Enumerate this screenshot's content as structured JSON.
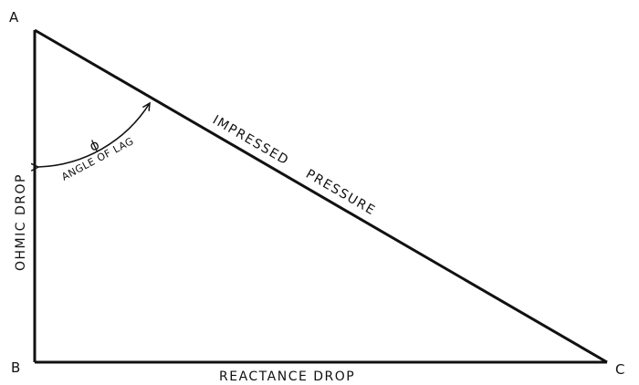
{
  "vertices": {
    "a": "A",
    "b": "B",
    "c": "C"
  },
  "sides": {
    "vertical": "OHMIC DROP",
    "horizontal": "REACTANCE DROP",
    "hypotenuse": "IMPRESSED PRESSURE"
  },
  "angle": {
    "symbol": "ϕ",
    "label": "ANGLE OF LAG"
  },
  "colors": {
    "ink": "#111111",
    "paper": "#ffffff"
  }
}
